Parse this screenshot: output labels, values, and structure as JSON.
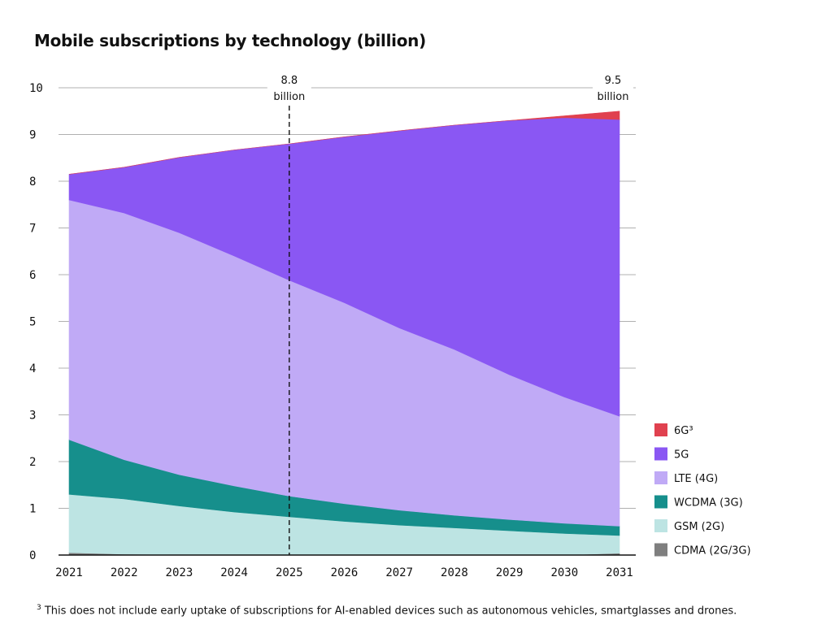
{
  "title": "Mobile subscriptions by technology (billion)",
  "footnote": {
    "marker": "3",
    "text": " This does not include early uptake of subscriptions for AI-enabled devices such as autonomous vehicles, smartglasses and drones."
  },
  "colors": {
    "grid": "#b0b0b0",
    "axis": "#111111"
  },
  "chart_data": {
    "type": "area",
    "stacked": true,
    "x": [
      "2021",
      "2022",
      "2023",
      "2024",
      "2025",
      "2026",
      "2027",
      "2028",
      "2029",
      "2030",
      "2031"
    ],
    "ylim": [
      0,
      10
    ],
    "yticks": [
      0,
      1,
      2,
      3,
      4,
      5,
      6,
      7,
      8,
      9,
      10
    ],
    "grid": "horizontal",
    "legend_placement": "bottom-right",
    "series": [
      {
        "name": "CDMA (2G/3G)",
        "color": "#7f7f7f",
        "values": [
          0.05,
          0.02,
          0.01,
          0.0,
          0.0,
          0.0,
          0.0,
          0.0,
          0.0,
          0.0,
          0.04
        ]
      },
      {
        "name": "GSM (2G)",
        "color": "#bde4e3",
        "values": [
          1.25,
          1.18,
          1.04,
          0.92,
          0.82,
          0.72,
          0.64,
          0.58,
          0.52,
          0.46,
          0.38
        ]
      },
      {
        "name": "WCDMA (3G)",
        "color": "#168f8c",
        "values": [
          1.17,
          0.84,
          0.67,
          0.56,
          0.44,
          0.38,
          0.32,
          0.27,
          0.24,
          0.22,
          0.2
        ]
      },
      {
        "name": "LTE (4G)",
        "color": "#c0aaf6",
        "values": [
          5.13,
          5.28,
          5.18,
          4.92,
          4.62,
          4.3,
          3.9,
          3.55,
          3.1,
          2.7,
          2.35
        ]
      },
      {
        "name": "5G",
        "color": "#8a57f3",
        "values": [
          0.55,
          0.98,
          1.61,
          2.27,
          2.92,
          3.55,
          4.22,
          4.8,
          5.44,
          5.98,
          6.35
        ]
      },
      {
        "name": "6G³",
        "color": "#e0414f",
        "values": [
          0.0,
          0.0,
          0.0,
          0.0,
          0.0,
          0.0,
          0.0,
          0.0,
          0.0,
          0.04,
          0.18
        ]
      }
    ],
    "annotations": [
      {
        "x": "2025",
        "line1": "8.8",
        "line2": "billion",
        "dashed_line": true
      },
      {
        "x": "2031",
        "line1": "9.5",
        "line2": "billion",
        "dashed_line": false
      }
    ]
  }
}
